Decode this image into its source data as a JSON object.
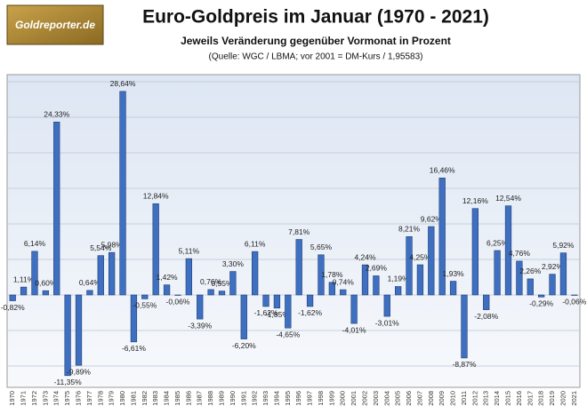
{
  "logo": "Goldreporter.de",
  "chart_data": {
    "type": "bar",
    "title": "Euro-Goldpreis im Januar (1970 - 2021)",
    "subtitle": "Jeweils Veränderung gegenüber Vormonat in Prozent",
    "source": "(Quelle: WGC / LBMA; vor 2001 = DM-Kurs  / 1,95583)",
    "categories": [
      "1970",
      "1971",
      "1972",
      "1973",
      "1974",
      "1975",
      "1976",
      "1977",
      "1978",
      "1979",
      "1980",
      "1981",
      "1982",
      "1983",
      "1984",
      "1985",
      "1986",
      "1987",
      "1988",
      "1989",
      "1990",
      "1991",
      "1992",
      "1993",
      "1994",
      "1995",
      "1996",
      "1997",
      "1998",
      "1999",
      "2000",
      "2001",
      "2002",
      "2003",
      "2004",
      "2005",
      "2006",
      "2007",
      "2008",
      "2009",
      "2010",
      "2011",
      "2012",
      "2013",
      "2014",
      "2015",
      "2016",
      "2017",
      "2018",
      "2019",
      "2020",
      "2021"
    ],
    "values": [
      -0.82,
      1.11,
      6.14,
      0.6,
      24.33,
      -11.35,
      -9.89,
      0.64,
      5.54,
      5.98,
      28.64,
      -6.61,
      -0.55,
      12.84,
      1.42,
      -0.06,
      5.11,
      -3.39,
      0.76,
      0.55,
      3.3,
      -6.2,
      6.11,
      -1.62,
      -1.85,
      -4.65,
      7.81,
      -1.62,
      5.65,
      1.78,
      0.74,
      -4.01,
      4.24,
      2.69,
      -3.01,
      1.19,
      8.21,
      4.25,
      9.62,
      16.46,
      1.93,
      -8.87,
      12.16,
      -2.08,
      6.25,
      12.54,
      4.76,
      2.26,
      -0.29,
      2.92,
      5.92,
      -0.06
    ],
    "value_labels": [
      "-0,82%",
      "1,11%",
      "6,14%",
      "0,60%",
      "24,33%",
      "-11,35%",
      "-9,89%",
      "0,64%",
      "5,54%",
      "5,98%",
      "28,64%",
      "-6,61%",
      "-0,55%",
      "12,84%",
      "1,42%",
      "-0,06%",
      "5,11%",
      "-3,39%",
      "0,76%",
      "0,55%",
      "3,30%",
      "-6,20%",
      "6,11%",
      "-1,62%",
      "-1,85%",
      "-4,65%",
      "7,81%",
      "-1,62%",
      "5,65%",
      "1,78%",
      "0,74%",
      "-4,01%",
      "4,24%",
      "2,69%",
      "-3,01%",
      "1,19%",
      "8,21%",
      "4,25%",
      "9,62%",
      "16,46%",
      "1,93%",
      "-8,87%",
      "12,16%",
      "-2,08%",
      "6,25%",
      "12,54%",
      "4,76%",
      "2,26%",
      "-0,29%",
      "2,92%",
      "5,92%",
      "-0,06%"
    ],
    "color": "#3f6fc0",
    "ylim": [
      -13,
      31
    ],
    "yticks": [
      -10,
      -5,
      0,
      5,
      10,
      15,
      20,
      25,
      30
    ],
    "grid": true
  }
}
